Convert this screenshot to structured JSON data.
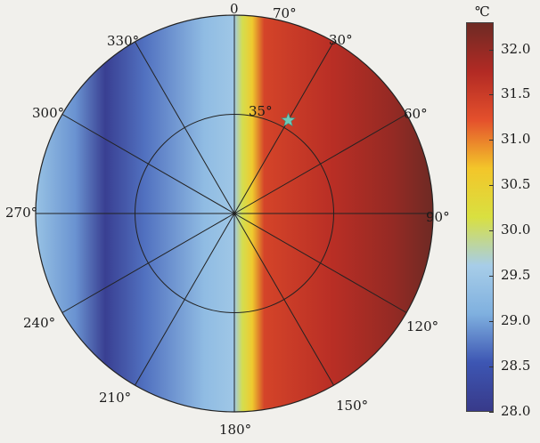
{
  "chart_data": {
    "type": "heatmap",
    "subtype": "polar",
    "title": "",
    "colorbar": {
      "unit": "℃",
      "min": 28.0,
      "max": 32.3,
      "ticks": [
        "32.0",
        "31.5",
        "31.0",
        "30.5",
        "30.0",
        "29.5",
        "29.0",
        "28.5",
        "28.0"
      ],
      "colors": [
        "#383a8a",
        "#3d56b3",
        "#7fb0df",
        "#a7cde8",
        "#d9e040",
        "#f3c62a",
        "#e4502c",
        "#b22a24",
        "#6e2a24"
      ]
    },
    "angular_labels": [
      {
        "angle": 0,
        "text": "0"
      },
      {
        "angle": 30,
        "text": "30°"
      },
      {
        "angle": 60,
        "text": "60°"
      },
      {
        "angle": 90,
        "text": "90°"
      },
      {
        "angle": 120,
        "text": "120°"
      },
      {
        "angle": 150,
        "text": "150°"
      },
      {
        "angle": 180,
        "text": "180°"
      },
      {
        "angle": 210,
        "text": "210°"
      },
      {
        "angle": 240,
        "text": "240°"
      },
      {
        "angle": 270,
        "text": "270°"
      },
      {
        "angle": 300,
        "text": "300°"
      },
      {
        "angle": 330,
        "text": "330°"
      }
    ],
    "radial_labels": [
      "35°",
      "70°"
    ],
    "marker": {
      "symbol": "star",
      "angle": 30,
      "radius": 38,
      "color": "#6fc9b8"
    },
    "field": {
      "description_of_gradient_by_east_west_position": [
        {
          "x": -1.0,
          "value": 29.4
        },
        {
          "x": -0.8,
          "value": 28.9
        },
        {
          "x": -0.65,
          "value": 28.1
        },
        {
          "x": -0.45,
          "value": 28.7
        },
        {
          "x": -0.15,
          "value": 29.3
        },
        {
          "x": 0.0,
          "value": 29.5
        },
        {
          "x": 0.04,
          "value": 30.1
        },
        {
          "x": 0.09,
          "value": 30.6
        },
        {
          "x": 0.15,
          "value": 31.4
        },
        {
          "x": 0.5,
          "value": 31.7
        },
        {
          "x": 0.8,
          "value": 32.0
        },
        {
          "x": 1.0,
          "value": 32.3
        }
      ]
    }
  }
}
